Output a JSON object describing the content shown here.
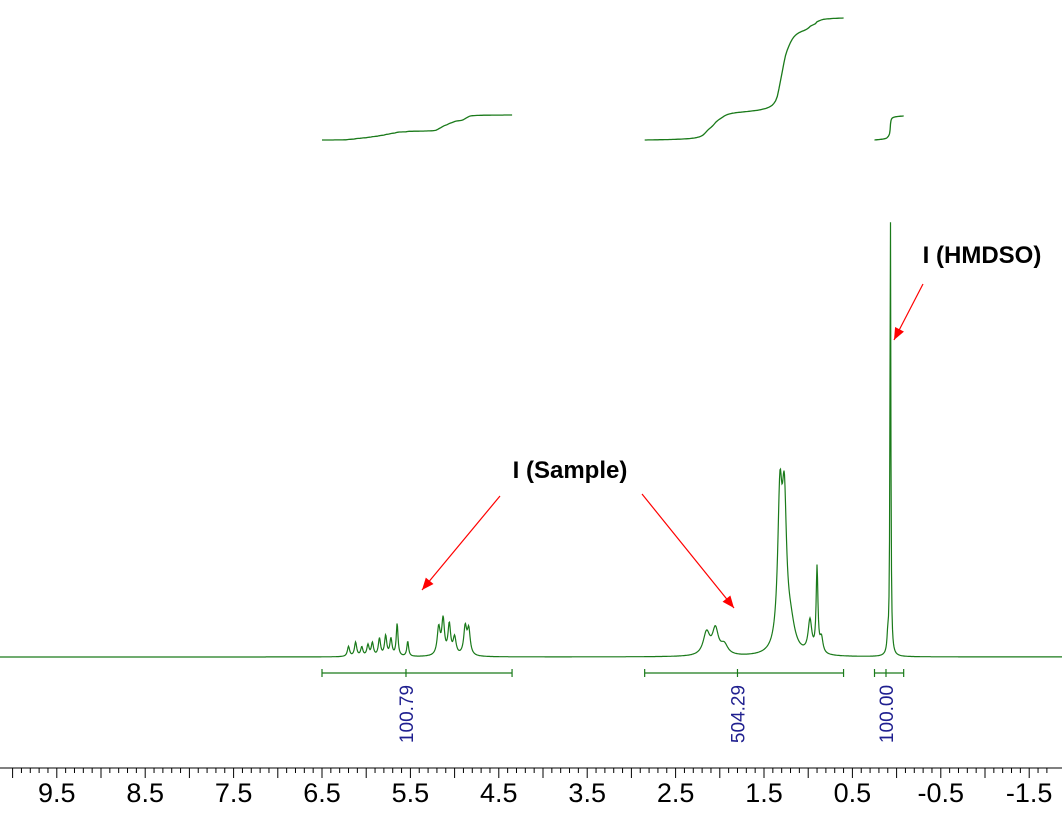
{
  "chart_data": {
    "type": "line",
    "title": "",
    "xlabel": "",
    "ylabel": "",
    "x_axis": {
      "reversed": true,
      "range": [
        10.0,
        -1.7
      ],
      "tick_labels": [
        "9.5",
        "8.5",
        "7.5",
        "6.5",
        "5.5",
        "4.5",
        "3.5",
        "2.5",
        "1.5",
        "0.5",
        "-0.5",
        "-1.5"
      ],
      "tick_values": [
        9.5,
        8.5,
        7.5,
        6.5,
        5.5,
        4.5,
        3.5,
        2.5,
        1.5,
        0.5,
        -0.5,
        -1.5
      ]
    },
    "colors": {
      "spectrum": "#1a7a1a",
      "arrow": "#ff0000",
      "integral_label": "#1f1f8f"
    },
    "peaks": [
      {
        "ppm": 6.2,
        "height": 0.02,
        "width": 0.015
      },
      {
        "ppm": 6.12,
        "height": 0.028,
        "width": 0.015
      },
      {
        "ppm": 6.05,
        "height": 0.018,
        "width": 0.015
      },
      {
        "ppm": 5.98,
        "height": 0.022,
        "width": 0.015
      },
      {
        "ppm": 5.93,
        "height": 0.026,
        "width": 0.015
      },
      {
        "ppm": 5.85,
        "height": 0.035,
        "width": 0.015
      },
      {
        "ppm": 5.78,
        "height": 0.04,
        "width": 0.015
      },
      {
        "ppm": 5.72,
        "height": 0.034,
        "width": 0.015
      },
      {
        "ppm": 5.65,
        "height": 0.065,
        "width": 0.012
      },
      {
        "ppm": 5.53,
        "height": 0.03,
        "width": 0.012
      },
      {
        "ppm": 5.18,
        "height": 0.055,
        "width": 0.02
      },
      {
        "ppm": 5.13,
        "height": 0.07,
        "width": 0.018
      },
      {
        "ppm": 5.06,
        "height": 0.06,
        "width": 0.018
      },
      {
        "ppm": 5.0,
        "height": 0.035,
        "width": 0.02
      },
      {
        "ppm": 4.88,
        "height": 0.055,
        "width": 0.02
      },
      {
        "ppm": 4.84,
        "height": 0.05,
        "width": 0.02
      },
      {
        "ppm": 2.15,
        "height": 0.045,
        "width": 0.045
      },
      {
        "ppm": 2.05,
        "height": 0.05,
        "width": 0.04
      },
      {
        "ppm": 1.95,
        "height": 0.02,
        "width": 0.05
      },
      {
        "ppm": 1.32,
        "height": 0.29,
        "width": 0.03
      },
      {
        "ppm": 1.27,
        "height": 0.27,
        "width": 0.03
      },
      {
        "ppm": 1.2,
        "height": 0.05,
        "width": 0.06
      },
      {
        "ppm": 0.98,
        "height": 0.065,
        "width": 0.025
      },
      {
        "ppm": 0.9,
        "height": 0.17,
        "width": 0.012
      },
      {
        "ppm": 0.85,
        "height": 0.03,
        "width": 0.02
      },
      {
        "ppm": 0.07,
        "height": 0.89,
        "width": 0.006
      },
      {
        "ppm": 0.1,
        "height": 0.03,
        "width": 0.01
      }
    ],
    "integrals": [
      {
        "from": 6.5,
        "to": 4.35,
        "value_label": "100.79",
        "relative_height": 0.19
      },
      {
        "from": 2.85,
        "to": 0.6,
        "value_label": "504.29",
        "relative_height": 1.0
      },
      {
        "from": 0.25,
        "to": -0.08,
        "value_label": "100.00",
        "relative_height": 0.19
      }
    ],
    "annotations": {
      "sample": "I (Sample)",
      "hmdso": "I (HMDSO)"
    }
  }
}
